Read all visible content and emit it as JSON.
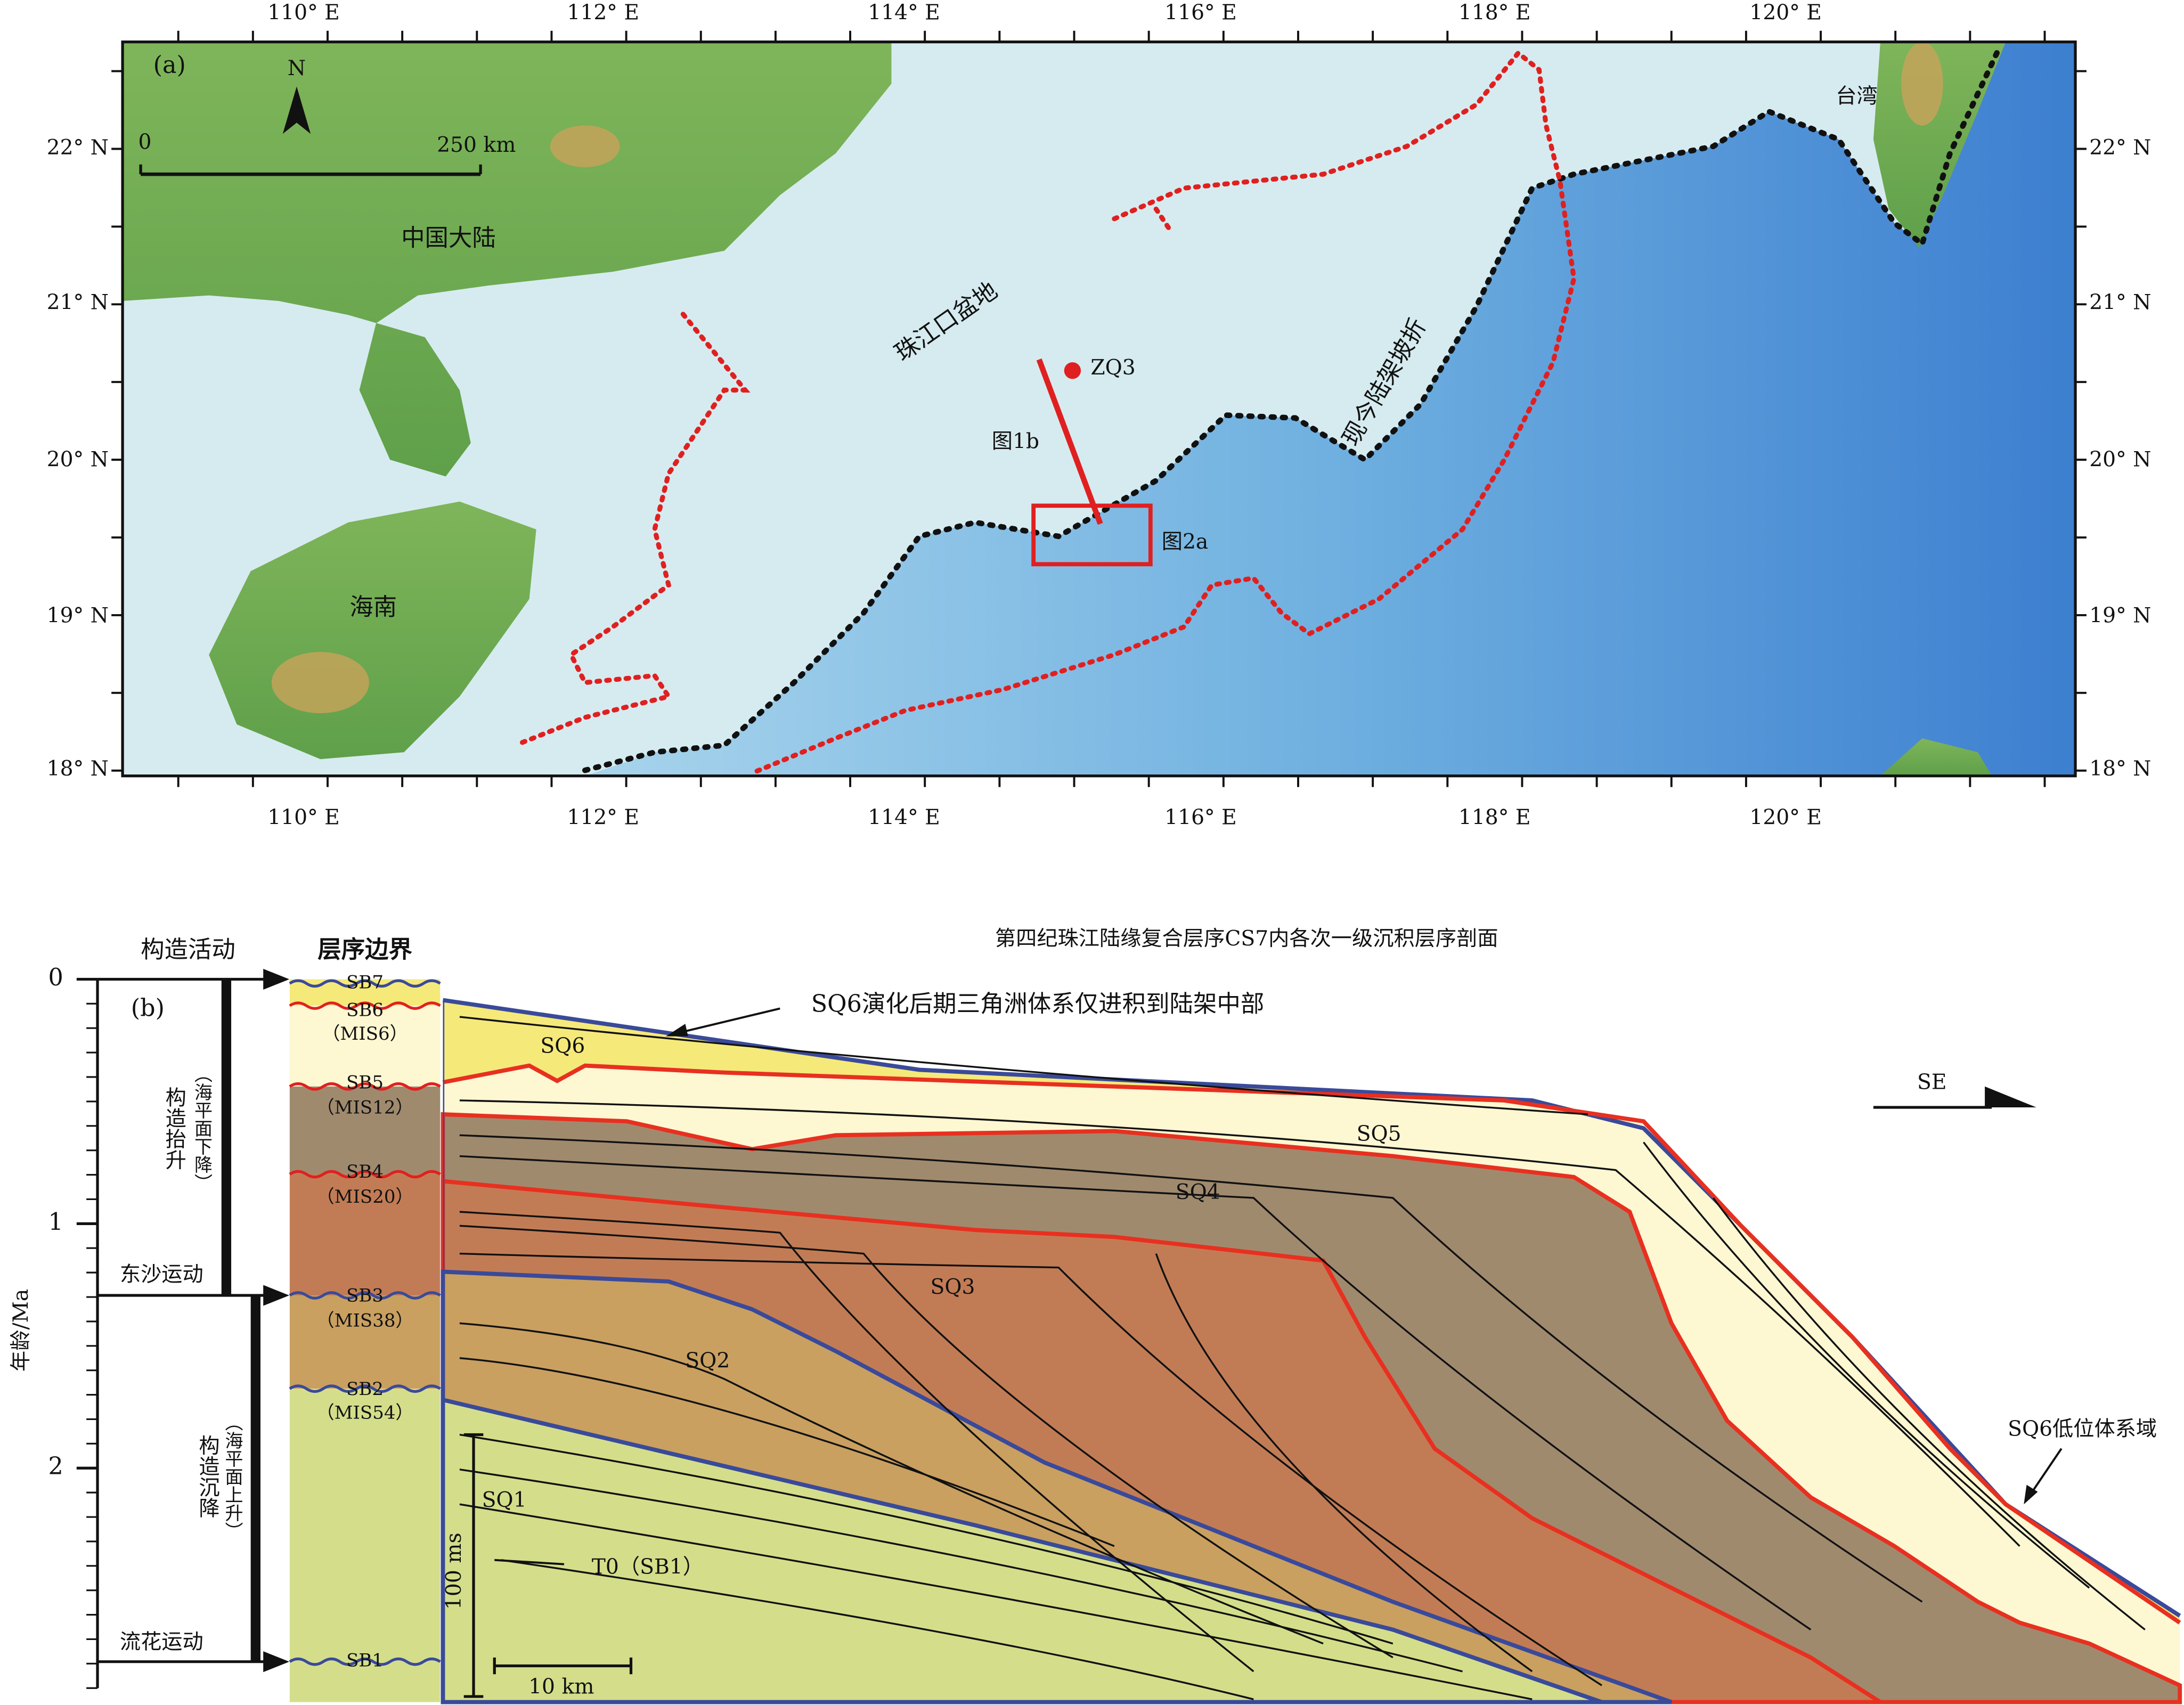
{
  "map": {
    "panel": "(a)",
    "north": "N",
    "scale": {
      "start": "0",
      "end": "250 km"
    },
    "lon_labels": [
      "110° E",
      "112° E",
      "114° E",
      "116° E",
      "118° E",
      "120° E"
    ],
    "lat_labels": [
      "22° N",
      "21° N",
      "20° N",
      "19° N",
      "18° N"
    ],
    "places": {
      "mainland": "中国大陆",
      "hainan": "海南",
      "taiwan": "台湾",
      "basin": "珠江口盆地",
      "shelf_break": "现今陆架坡折",
      "well": "ZQ3",
      "profile": "图1b",
      "box": "图2a"
    }
  },
  "section": {
    "panel": "(b)",
    "title": "第四纪珠江陆缘复合层序CS7内各次一级沉积层序剖面",
    "headers": {
      "tectonics": "构造活动",
      "boundaries": "层序边界"
    },
    "age_axis": {
      "label": "年龄/Ma",
      "ticks": [
        0,
        1,
        2
      ]
    },
    "tectonics": {
      "uplift": "构造抬升",
      "uplift_note": "（海平面下降）",
      "event1": "东沙运动",
      "subsidence": "构造沉降",
      "subsidence_note": "（海平面上升）",
      "event2": "流花运动"
    },
    "boundaries": [
      {
        "name": "SB7"
      },
      {
        "name": "SB6",
        "mis": "（MIS6）"
      },
      {
        "name": "SB5",
        "mis": "（MIS12）"
      },
      {
        "name": "SB4",
        "mis": "（MIS20）"
      },
      {
        "name": "SB3",
        "mis": "（MIS38）"
      },
      {
        "name": "SB2",
        "mis": "（MIS54）"
      },
      {
        "name": "SB1"
      }
    ],
    "sequences": [
      "SQ1",
      "SQ2",
      "SQ3",
      "SQ4",
      "SQ5",
      "SQ6"
    ],
    "annotations": {
      "delta": "SQ6演化后期三角洲体系仅进积到陆架中部",
      "lowstand": "SQ6低位体系域",
      "t0": "T0（SB1）",
      "direction": "SE",
      "vscale": "100 ms",
      "hscale": "10 km"
    }
  }
}
